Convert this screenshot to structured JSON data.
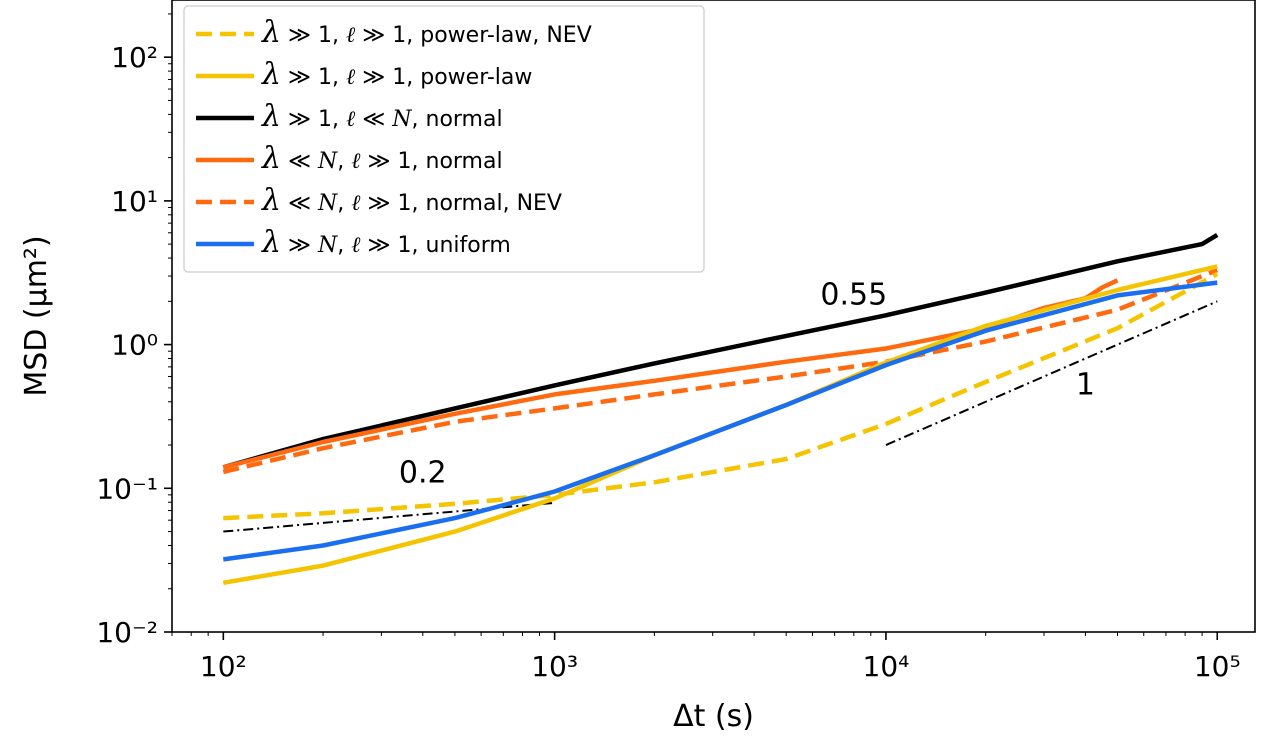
{
  "chart_data": {
    "type": "line",
    "xlabel": "Δt (s)",
    "ylabel": "MSD (μm²)",
    "xscale": "log",
    "yscale": "log",
    "xlim": [
      70,
      130000
    ],
    "ylim": [
      0.01,
      250
    ],
    "x_ticks": [
      {
        "value": 100,
        "label": "10²"
      },
      {
        "value": 1000,
        "label": "10³"
      },
      {
        "value": 10000,
        "label": "10⁴"
      },
      {
        "value": 100000,
        "label": "10⁵"
      }
    ],
    "y_ticks": [
      {
        "value": 0.01,
        "label": "10⁻²"
      },
      {
        "value": 0.1,
        "label": "10⁻¹"
      },
      {
        "value": 1,
        "label": "10⁰"
      },
      {
        "value": 10,
        "label": "10¹"
      },
      {
        "value": 100,
        "label": "10²"
      }
    ],
    "legend_position": "top-left",
    "series": [
      {
        "name": "λ ≫ 1, ℓ ≫ 1, power-law, NEV",
        "legend": {
          "sym": "λ",
          "rel1": "≫",
          "v1": "1",
          "sym2": "ℓ",
          "rel2": "≫",
          "v2": "1",
          "rest": "power-law, NEV"
        },
        "color": "#F5C400",
        "dash": "dashed",
        "x": [
          100,
          200,
          500,
          1000,
          2000,
          5000,
          10000,
          20000,
          50000,
          100000
        ],
        "y": [
          0.062,
          0.067,
          0.078,
          0.09,
          0.11,
          0.16,
          0.28,
          0.55,
          1.3,
          3.1
        ]
      },
      {
        "name": "λ ≫ 1, ℓ ≫ 1, power-law",
        "legend": {
          "sym": "λ",
          "rel1": "≫",
          "v1": "1",
          "sym2": "ℓ",
          "rel2": "≫",
          "v2": "1",
          "rest": "power-law"
        },
        "color": "#F5C400",
        "dash": "solid",
        "x": [
          100,
          200,
          500,
          1000,
          2000,
          5000,
          10000,
          20000,
          50000,
          100000
        ],
        "y": [
          0.022,
          0.029,
          0.05,
          0.085,
          0.17,
          0.38,
          0.75,
          1.35,
          2.4,
          3.5
        ]
      },
      {
        "name": "λ ≫ 1, ℓ ≪ N, normal",
        "legend": {
          "sym": "λ",
          "rel1": "≫",
          "v1": "1",
          "sym2": "ℓ",
          "rel2": "≪",
          "v2": "N",
          "rest": "normal"
        },
        "color": "#000000",
        "dash": "solid",
        "x": [
          100,
          200,
          500,
          1000,
          2000,
          5000,
          10000,
          20000,
          50000,
          90000,
          100000
        ],
        "y": [
          0.14,
          0.22,
          0.36,
          0.52,
          0.74,
          1.15,
          1.6,
          2.3,
          3.8,
          5.0,
          5.8
        ]
      },
      {
        "name": "λ ≪ N, ℓ ≫ 1, normal",
        "legend": {
          "sym": "λ",
          "rel1": "≪",
          "v1": "N",
          "sym2": "ℓ",
          "rel2": "≫",
          "v2": "1",
          "rest": "normal"
        },
        "color": "#FF6A10",
        "dash": "solid",
        "x": [
          100,
          200,
          500,
          1000,
          2000,
          5000,
          10000,
          20000,
          30000,
          40000,
          45000,
          50000
        ],
        "y": [
          0.14,
          0.21,
          0.33,
          0.45,
          0.56,
          0.76,
          0.94,
          1.3,
          1.8,
          2.1,
          2.5,
          2.8
        ]
      },
      {
        "name": "λ ≪ N, ℓ ≫ 1, normal, NEV",
        "legend": {
          "sym": "λ",
          "rel1": "≪",
          "v1": "N",
          "sym2": "ℓ",
          "rel2": "≫",
          "v2": "1",
          "rest": "normal, NEV"
        },
        "color": "#FF6A10",
        "dash": "dashed",
        "x": [
          100,
          200,
          500,
          1000,
          2000,
          5000,
          10000,
          20000,
          50000,
          100000
        ],
        "y": [
          0.13,
          0.19,
          0.29,
          0.36,
          0.45,
          0.6,
          0.76,
          1.05,
          1.75,
          3.3
        ]
      },
      {
        "name": "λ ≫ N, ℓ ≫ 1, uniform",
        "legend": {
          "sym": "λ",
          "rel1": "≫",
          "v1": "N",
          "sym2": "ℓ",
          "rel2": "≫",
          "v2": "1",
          "rest": "uniform"
        },
        "color": "#1A6EF0",
        "dash": "solid",
        "x": [
          100,
          200,
          500,
          1000,
          2000,
          5000,
          10000,
          20000,
          50000,
          100000
        ],
        "y": [
          0.032,
          0.04,
          0.062,
          0.095,
          0.17,
          0.38,
          0.72,
          1.25,
          2.2,
          2.7
        ]
      }
    ],
    "reference_lines": [
      {
        "label": "0.2",
        "x": [
          100,
          1000
        ],
        "y": [
          0.05,
          0.0792
        ],
        "label_at": {
          "x": 400,
          "y": 0.11
        }
      },
      {
        "label": "0.55",
        "x": [
          100,
          100000
        ],
        "y": [
          0.16,
          7.3
        ],
        "hidden_line": true,
        "label_at": {
          "x": 8000,
          "y": 1.9
        }
      },
      {
        "label": "1",
        "x": [
          10000,
          100000
        ],
        "y": [
          0.2,
          2.0
        ],
        "label_at": {
          "x": 40000,
          "y": 0.45
        }
      }
    ]
  }
}
